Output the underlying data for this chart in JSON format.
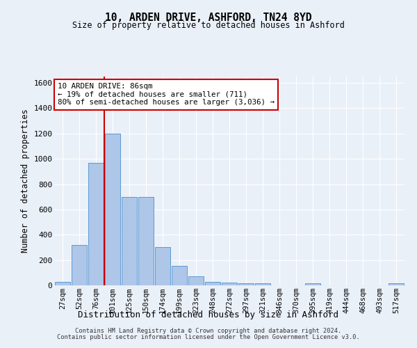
{
  "title_line1": "10, ARDEN DRIVE, ASHFORD, TN24 8YD",
  "title_line2": "Size of property relative to detached houses in Ashford",
  "xlabel": "Distribution of detached houses by size in Ashford",
  "ylabel": "Number of detached properties",
  "bar_labels": [
    "27sqm",
    "52sqm",
    "76sqm",
    "101sqm",
    "125sqm",
    "150sqm",
    "174sqm",
    "199sqm",
    "223sqm",
    "248sqm",
    "272sqm",
    "297sqm",
    "321sqm",
    "346sqm",
    "370sqm",
    "395sqm",
    "419sqm",
    "444sqm",
    "468sqm",
    "493sqm",
    "517sqm"
  ],
  "bar_values": [
    30,
    320,
    970,
    1200,
    700,
    700,
    305,
    155,
    70,
    30,
    20,
    15,
    15,
    0,
    0,
    15,
    0,
    0,
    0,
    0,
    15
  ],
  "bar_color": "#aec6e8",
  "bar_edge_color": "#5a9bd5",
  "vline_x": 2.5,
  "vline_color": "#cc0000",
  "annotation_text": "10 ARDEN DRIVE: 86sqm\n← 19% of detached houses are smaller (711)\n80% of semi-detached houses are larger (3,036) →",
  "annotation_box_color": "#ffffff",
  "annotation_box_edge": "#cc0000",
  "ylim": [
    0,
    1650
  ],
  "yticks": [
    0,
    200,
    400,
    600,
    800,
    1000,
    1200,
    1400,
    1600
  ],
  "bg_color": "#eaf0f8",
  "plot_bg_color": "#eaf0f8",
  "grid_color": "#ffffff",
  "footer_line1": "Contains HM Land Registry data © Crown copyright and database right 2024.",
  "footer_line2": "Contains public sector information licensed under the Open Government Licence v3.0."
}
